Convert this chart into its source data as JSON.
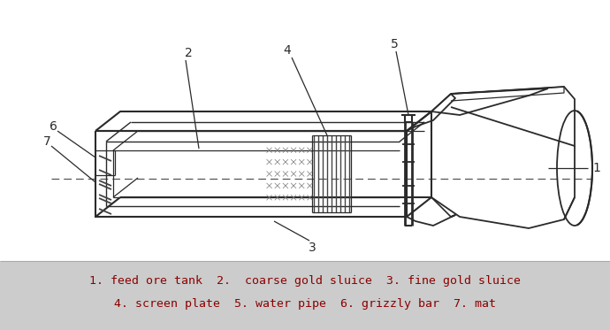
{
  "caption_line1": "1. feed ore tank  2.  coarse gold sluice  3. fine gold sluice",
  "caption_line2": "4. screen plate  5. water pipe  6. grizzly bar  7. mat",
  "diagram_bg": "#ffffff",
  "line_color": "#2a2a2a",
  "caption_bg": "#cccccc",
  "caption_color": "#8B0000",
  "figsize": [
    6.9,
    3.73
  ],
  "dpi": 100
}
